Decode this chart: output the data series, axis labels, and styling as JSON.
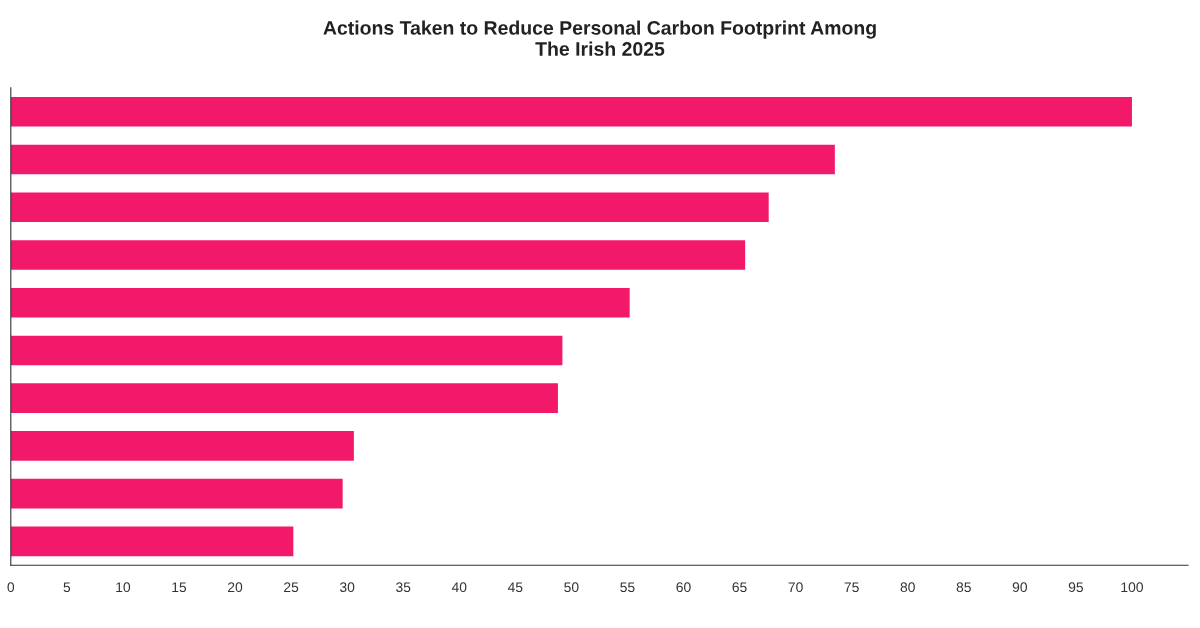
{
  "chart_data": {
    "type": "bar",
    "orientation": "horizontal",
    "title": "Actions Taken to Reduce Personal Carbon Footprint Among\nThe Irish 2025",
    "categories": [
      null,
      null,
      null,
      null,
      null,
      null,
      null,
      null,
      null,
      null
    ],
    "values": [
      100,
      73.5,
      67.6,
      65.5,
      55.2,
      49.2,
      48.8,
      30.6,
      29.6,
      25.2
    ],
    "color": "#f2186a",
    "xlim": [
      0,
      105
    ],
    "xticks": [
      0,
      5,
      10,
      15,
      20,
      25,
      30,
      35,
      40,
      45,
      50,
      55,
      60,
      65,
      70,
      75,
      80,
      85,
      90,
      95,
      100
    ],
    "grid": false,
    "legend": false
  }
}
